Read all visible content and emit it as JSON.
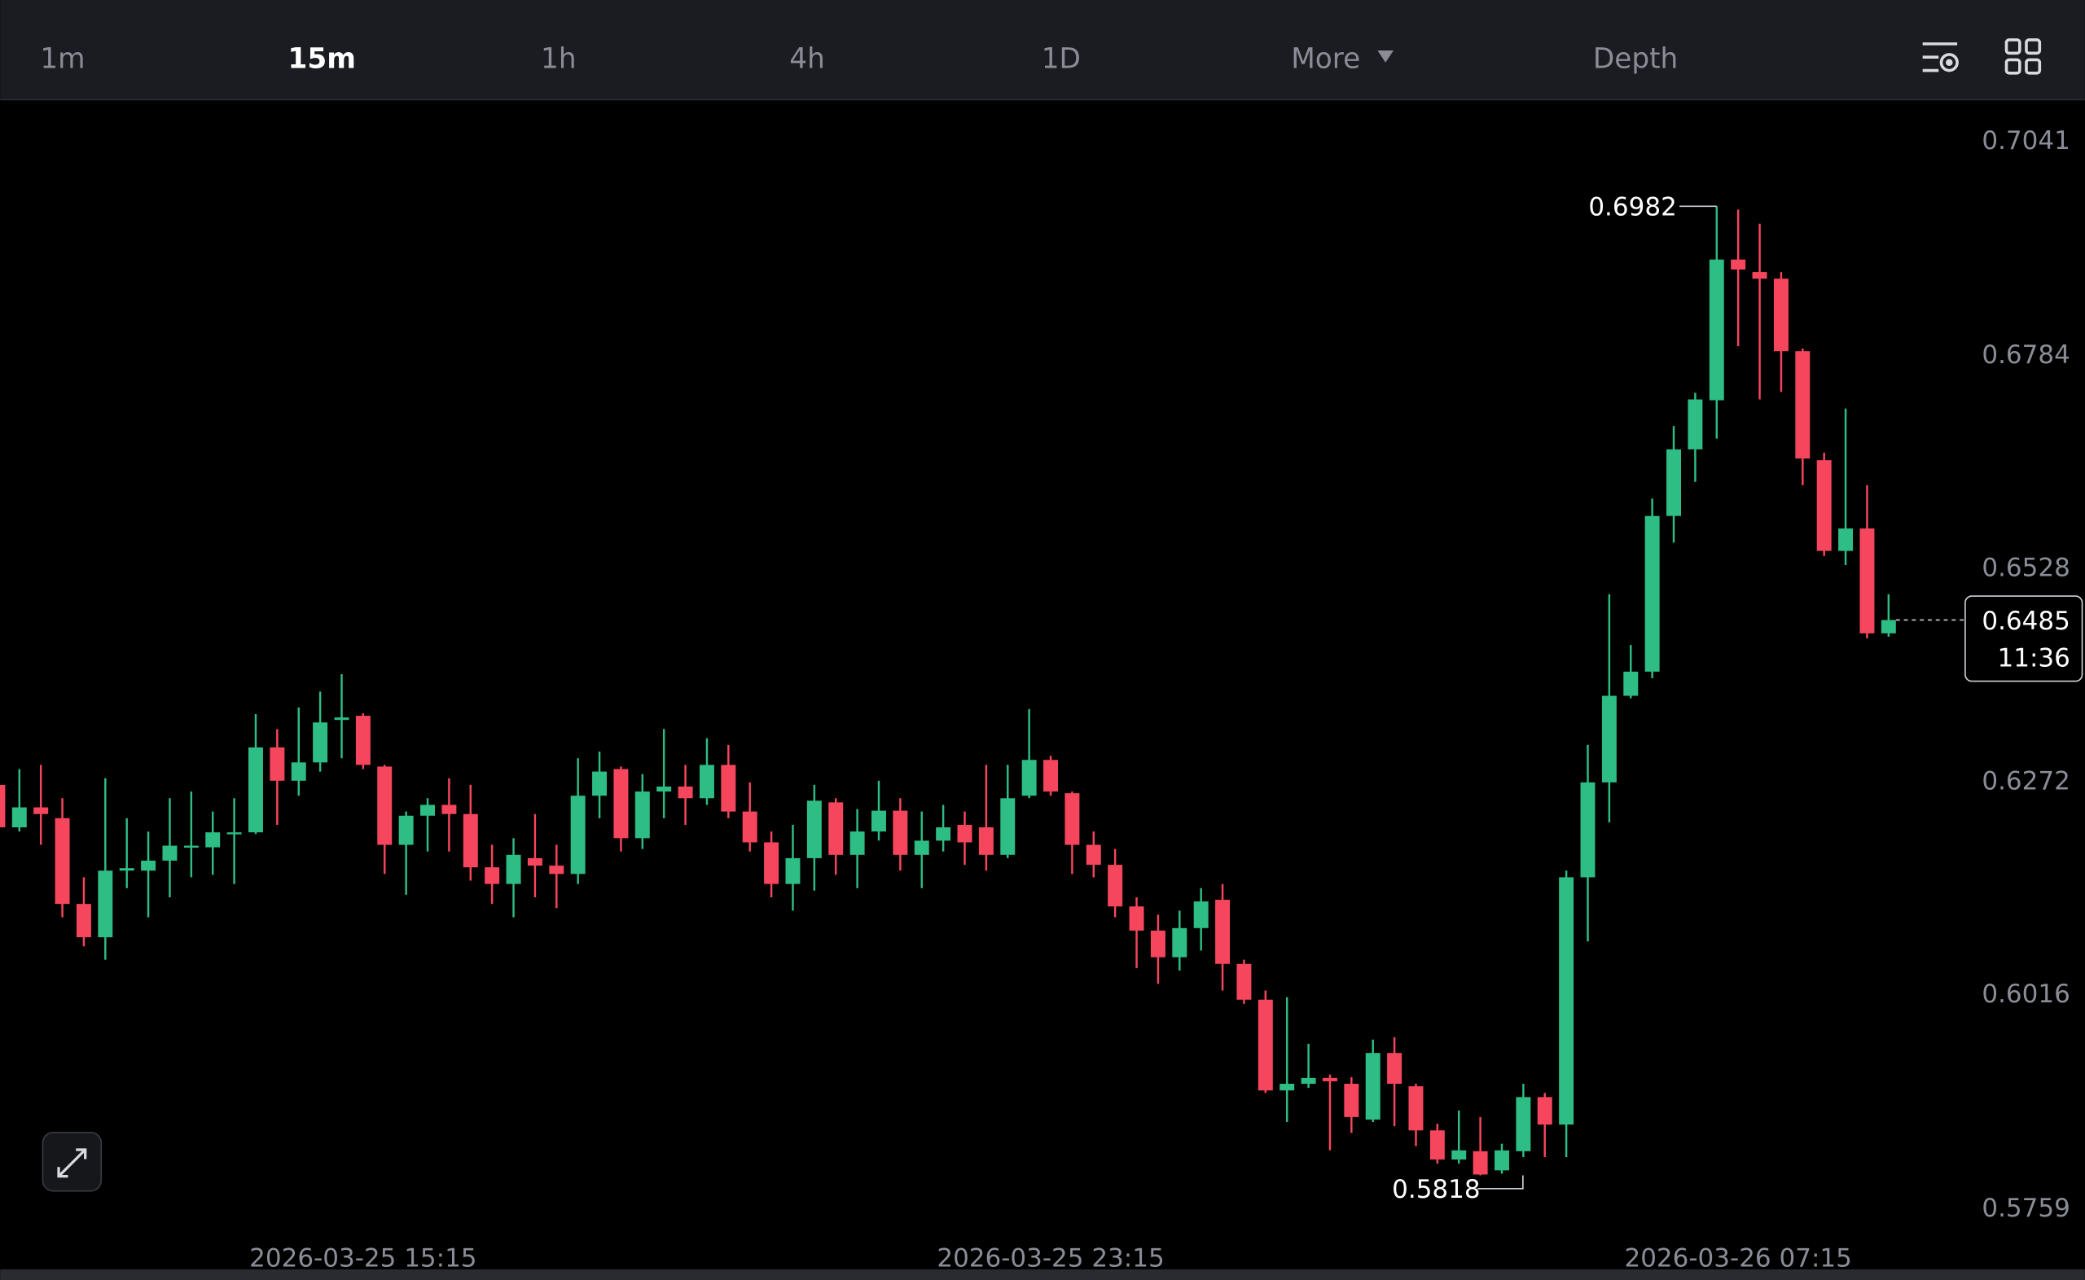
{
  "tabs": [
    "1m",
    "15m",
    "1h",
    "4h",
    "1D",
    "More",
    "Depth"
  ],
  "active_tab": "15m",
  "chart_data": {
    "type": "candlestick",
    "up_color": "#2ebd85",
    "down_color": "#f6465d",
    "categories": [
      null,
      null,
      null,
      null,
      null,
      null,
      null,
      null,
      null,
      null,
      null,
      null,
      null,
      null,
      null,
      null,
      null,
      "2026-03-25 15:15",
      null,
      null,
      null,
      null,
      null,
      null,
      null,
      null,
      null,
      null,
      null,
      null,
      null,
      null,
      null,
      null,
      null,
      null,
      null,
      null,
      null,
      null,
      null,
      null,
      null,
      null,
      null,
      null,
      null,
      null,
      null,
      "2026-03-25 23:15",
      null,
      null,
      null,
      null,
      null,
      null,
      null,
      null,
      null,
      null,
      null,
      null,
      null,
      null,
      null,
      null,
      null,
      null,
      null,
      null,
      null,
      null,
      null,
      null,
      null,
      null,
      null,
      null,
      null,
      null,
      null,
      "2026-03-26 07:15",
      null,
      null,
      null,
      null,
      null,
      null,
      null
    ],
    "open": [
      0.6287,
      0.6236,
      0.626,
      0.6247,
      0.6144,
      0.6104,
      0.6184,
      0.6184,
      0.6196,
      0.6212,
      0.6212,
      0.6228,
      0.623,
      0.6332,
      0.6292,
      0.6314,
      0.6365,
      0.637,
      0.6309,
      0.6215,
      0.625,
      0.6263,
      0.6252,
      0.6188,
      0.6168,
      0.6199,
      0.619,
      0.618,
      0.6274,
      0.6306,
      0.6223,
      0.6279,
      0.6285,
      0.6271,
      0.6311,
      0.6255,
      0.6218,
      0.6168,
      0.6199,
      0.6266,
      0.6203,
      0.6231,
      0.6256,
      0.6203,
      0.622,
      0.6239,
      0.6236,
      0.6203,
      0.6274,
      0.6317,
      0.6277,
      0.6215,
      0.6191,
      0.6141,
      0.6112,
      0.608,
      0.6115,
      0.6149,
      0.6072,
      0.6029,
      0.592,
      0.5928,
      0.5935,
      0.5928,
      0.5885,
      0.5965,
      0.5925,
      0.5872,
      0.5837,
      0.5847,
      0.5824,
      0.5847,
      0.5912,
      0.5879,
      0.6176,
      0.629,
      0.6394,
      0.6423,
      0.661,
      0.669,
      0.6749,
      0.6918,
      0.6903,
      0.6895,
      0.6808,
      0.6677,
      0.6568,
      0.6595,
      0.6469
    ],
    "high": [
      0.6303,
      0.6306,
      0.6311,
      0.6271,
      0.6176,
      0.6295,
      0.6247,
      0.6231,
      0.6271,
      0.6279,
      0.6255,
      0.6271,
      0.6372,
      0.6354,
      0.638,
      0.6399,
      0.642,
      0.6373,
      0.6311,
      0.6255,
      0.6271,
      0.6295,
      0.6287,
      0.6215,
      0.6223,
      0.6252,
      0.6215,
      0.6319,
      0.6327,
      0.6309,
      0.63,
      0.6354,
      0.6311,
      0.6343,
      0.6335,
      0.629,
      0.6231,
      0.6239,
      0.6287,
      0.6271,
      0.6258,
      0.6292,
      0.6271,
      0.6255,
      0.6263,
      0.6255,
      0.6311,
      0.6311,
      0.6378,
      0.6322,
      0.6279,
      0.6231,
      0.621,
      0.6152,
      0.6131,
      0.6136,
      0.6163,
      0.6168,
      0.6077,
      0.604,
      0.6032,
      0.5976,
      0.5939,
      0.5936,
      0.5981,
      0.5984,
      0.5928,
      0.588,
      0.5896,
      0.5888,
      0.5856,
      0.5928,
      0.5917,
      0.6184,
      0.6335,
      0.6516,
      0.6455,
      0.6631,
      0.6718,
      0.6758,
      0.6982,
      0.6978,
      0.6961,
      0.6903,
      0.6811,
      0.6686,
      0.6739,
      0.6647,
      0.6516
    ],
    "low": [
      0.6231,
      0.6231,
      0.6215,
      0.6128,
      0.6093,
      0.6077,
      0.6163,
      0.6128,
      0.6152,
      0.6176,
      0.6179,
      0.6168,
      0.6228,
      0.6239,
      0.6274,
      0.6303,
      0.6319,
      0.6306,
      0.618,
      0.6155,
      0.6207,
      0.6207,
      0.6172,
      0.6144,
      0.6128,
      0.6152,
      0.6139,
      0.6168,
      0.6247,
      0.6207,
      0.621,
      0.6247,
      0.6239,
      0.6263,
      0.6247,
      0.6207,
      0.6152,
      0.6136,
      0.616,
      0.6179,
      0.6163,
      0.622,
      0.6184,
      0.6163,
      0.6207,
      0.6191,
      0.6184,
      0.6199,
      0.6271,
      0.6274,
      0.618,
      0.6176,
      0.6128,
      0.6067,
      0.6048,
      0.6064,
      0.6088,
      0.604,
      0.6024,
      0.5917,
      0.5882,
      0.5923,
      0.5848,
      0.5869,
      0.5882,
      0.5877,
      0.5853,
      0.5832,
      0.5832,
      0.5818,
      0.582,
      0.584,
      0.584,
      0.584,
      0.6099,
      0.6242,
      0.6391,
      0.6415,
      0.6578,
      0.6651,
      0.6703,
      0.6814,
      0.675,
      0.6759,
      0.6647,
      0.6562,
      0.6551,
      0.6463,
      0.6465
    ],
    "close": [
      0.6236,
      0.626,
      0.6252,
      0.6144,
      0.6104,
      0.6184,
      0.6187,
      0.6196,
      0.6214,
      0.6214,
      0.623,
      0.623,
      0.6332,
      0.6292,
      0.6314,
      0.6362,
      0.6368,
      0.6311,
      0.6215,
      0.625,
      0.6263,
      0.6252,
      0.6188,
      0.6168,
      0.6203,
      0.619,
      0.618,
      0.6274,
      0.6303,
      0.6223,
      0.6279,
      0.6285,
      0.6271,
      0.6311,
      0.6255,
      0.6218,
      0.6168,
      0.6199,
      0.6268,
      0.6203,
      0.6231,
      0.6256,
      0.6203,
      0.622,
      0.6236,
      0.6218,
      0.6203,
      0.6271,
      0.6317,
      0.6279,
      0.6215,
      0.6191,
      0.6141,
      0.6112,
      0.608,
      0.6115,
      0.6147,
      0.6072,
      0.6029,
      0.592,
      0.5928,
      0.5935,
      0.5931,
      0.5888,
      0.5965,
      0.5928,
      0.5872,
      0.5837,
      0.5848,
      0.5819,
      0.5848,
      0.5912,
      0.5879,
      0.6176,
      0.629,
      0.6394,
      0.6423,
      0.661,
      0.669,
      0.675,
      0.6918,
      0.6906,
      0.6895,
      0.6808,
      0.6679,
      0.6568,
      0.6595,
      0.6469,
      0.6485
    ],
    "ylim": [
      0.5737,
      0.711
    ],
    "yticks": [
      0.7041,
      0.6784,
      0.6528,
      0.6272,
      0.6016,
      0.5759
    ],
    "countdown": "11:36"
  }
}
